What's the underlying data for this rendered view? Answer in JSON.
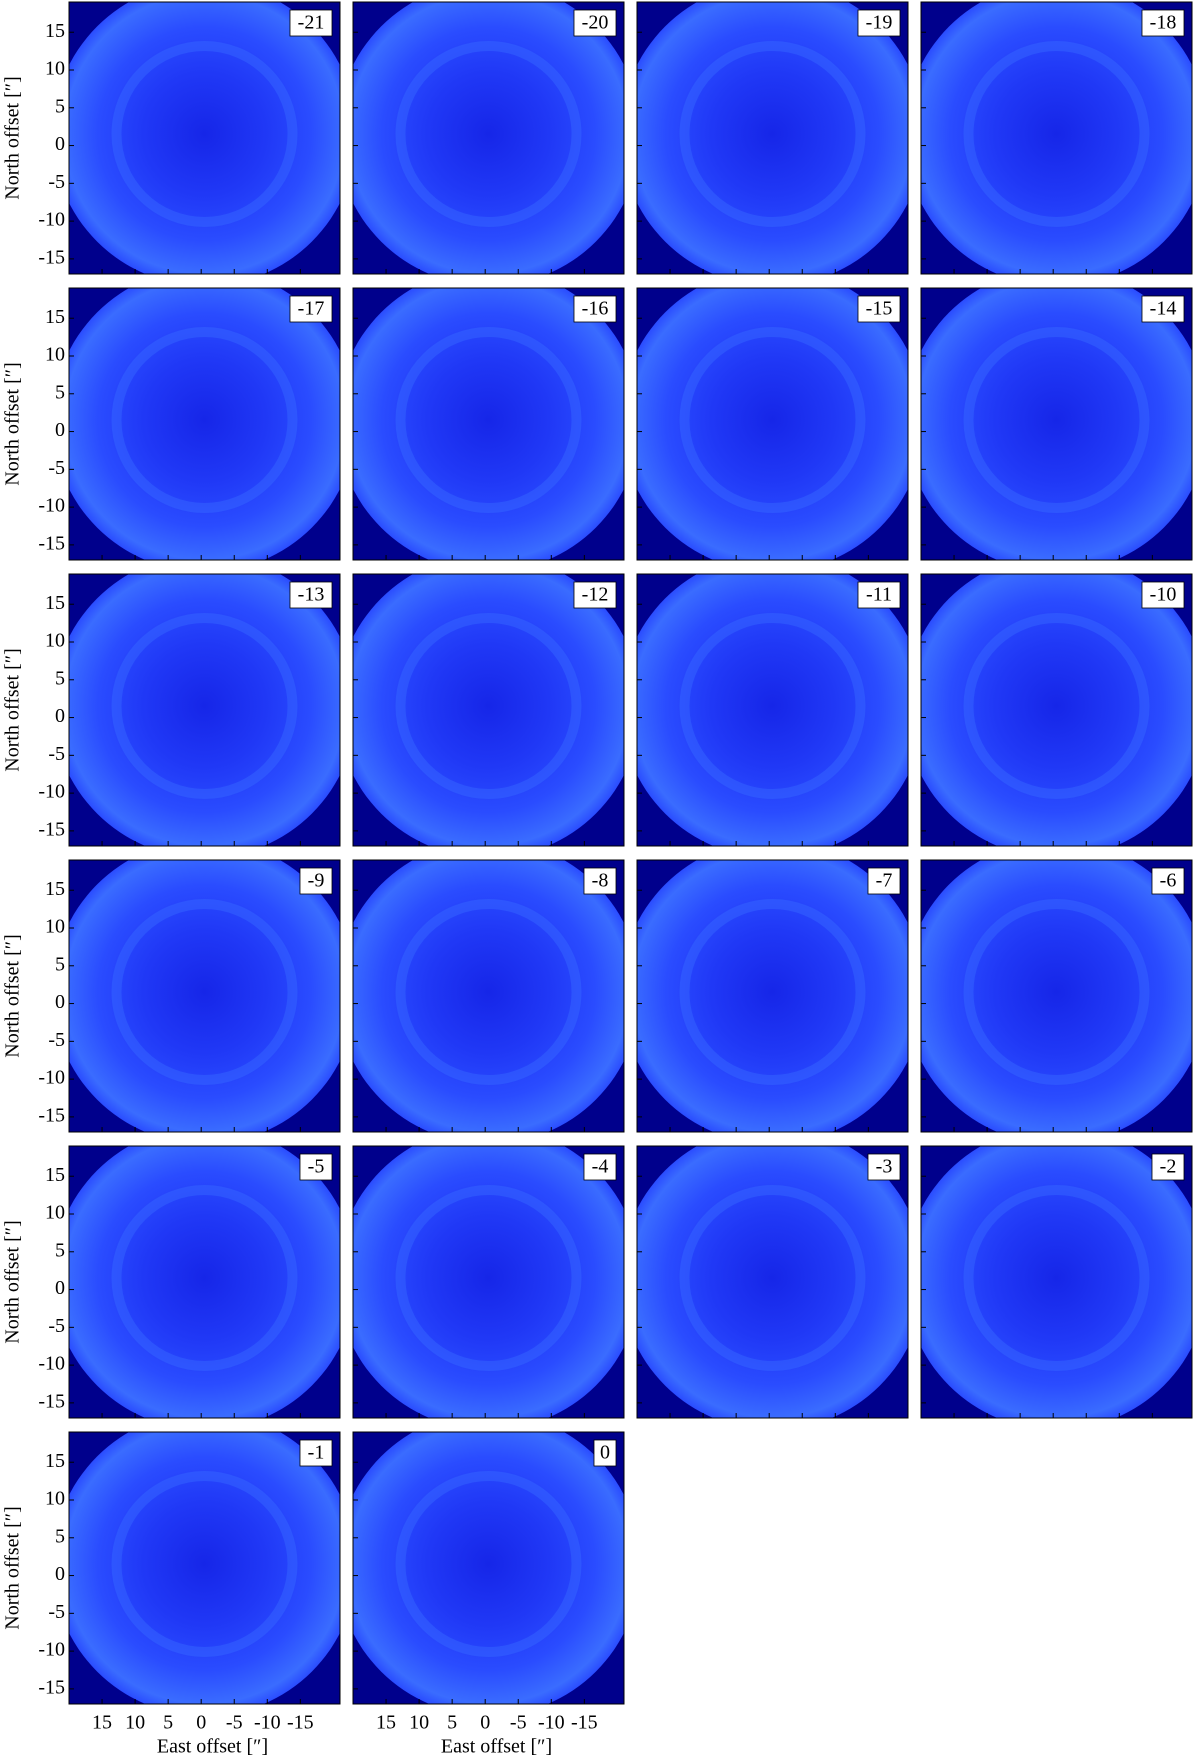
{
  "chart_data": {
    "type": "image-grid",
    "panels": [
      "-21",
      "-20",
      "-19",
      "-18",
      "-17",
      "-16",
      "-15",
      "-14",
      "-13",
      "-12",
      "-11",
      "-10",
      "-9",
      "-8",
      "-7",
      "-6",
      "-5",
      "-4",
      "-3",
      "-2",
      "-1",
      "0"
    ],
    "xlabel": "East offset [″]",
    "ylabel": "North offset [″]",
    "xlim": [
      20,
      -21
    ],
    "ylim": [
      -17,
      19
    ],
    "xticks": [
      15,
      10,
      5,
      0,
      -5,
      -10,
      -15
    ],
    "yticks": [
      15,
      10,
      5,
      0,
      -5,
      -10,
      -15
    ]
  }
}
